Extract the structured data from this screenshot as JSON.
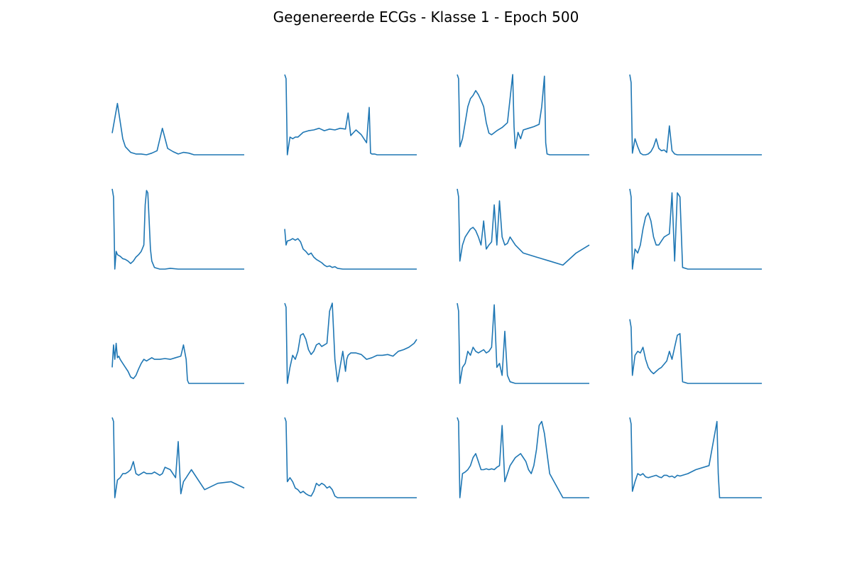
{
  "figure": {
    "title": "Gegenereerde ECGs - Klasse 1 - Epoch 500"
  },
  "line_color": "#1f77b4",
  "chart_data": [
    {
      "type": "line",
      "x": [
        0,
        4,
        8,
        10,
        14,
        18,
        22,
        26,
        30,
        34,
        38,
        42,
        46,
        50,
        54,
        58,
        62,
        66,
        70,
        74,
        78,
        82,
        86,
        90,
        94,
        98,
        100
      ],
      "values": [
        0.27,
        0.64,
        0.2,
        0.1,
        0.03,
        0.01,
        0.01,
        0.0,
        0.02,
        0.05,
        0.33,
        0.08,
        0.04,
        0.01,
        0.03,
        0.02,
        0.0,
        0.0,
        0.0,
        0.0,
        0.0,
        0.0,
        0.0,
        0.0,
        0.0,
        0.0,
        0.0
      ]
    },
    {
      "type": "line",
      "x": [
        0,
        1,
        2,
        4,
        6,
        8,
        10,
        14,
        18,
        22,
        26,
        30,
        34,
        38,
        42,
        46,
        48,
        50,
        54,
        58,
        62,
        64,
        65,
        66,
        68,
        70,
        74,
        78,
        82,
        86,
        90,
        94,
        98,
        100
      ],
      "values": [
        1.0,
        0.95,
        0.0,
        0.22,
        0.2,
        0.22,
        0.22,
        0.28,
        0.3,
        0.31,
        0.33,
        0.3,
        0.32,
        0.31,
        0.33,
        0.32,
        0.52,
        0.24,
        0.31,
        0.25,
        0.15,
        0.59,
        0.02,
        0.01,
        0.01,
        0.0,
        0.0,
        0.0,
        0.0,
        0.0,
        0.0,
        0.0,
        0.0,
        0.0
      ]
    },
    {
      "type": "line",
      "x": [
        0,
        1,
        2,
        4,
        6,
        8,
        10,
        12,
        14,
        16,
        18,
        20,
        22,
        24,
        26,
        30,
        34,
        38,
        40,
        42,
        43,
        44,
        46,
        48,
        50,
        54,
        58,
        62,
        64,
        66,
        67,
        68,
        70,
        74,
        80,
        86,
        92,
        100
      ],
      "values": [
        1.0,
        0.95,
        0.1,
        0.2,
        0.4,
        0.6,
        0.7,
        0.74,
        0.8,
        0.75,
        0.68,
        0.6,
        0.4,
        0.27,
        0.25,
        0.3,
        0.34,
        0.4,
        0.7,
        1.0,
        0.35,
        0.08,
        0.28,
        0.2,
        0.31,
        0.33,
        0.35,
        0.38,
        0.6,
        0.98,
        0.15,
        0.01,
        0.0,
        0.0,
        0.0,
        0.0,
        0.0,
        0.0
      ]
    },
    {
      "type": "line",
      "x": [
        0,
        1,
        2,
        4,
        6,
        8,
        10,
        12,
        14,
        16,
        18,
        20,
        22,
        24,
        26,
        28,
        30,
        32,
        34,
        36,
        38,
        40,
        44,
        50,
        60,
        70,
        80,
        90,
        100
      ],
      "values": [
        1.0,
        0.9,
        0.02,
        0.2,
        0.1,
        0.02,
        0.0,
        0.0,
        0.01,
        0.04,
        0.1,
        0.2,
        0.08,
        0.05,
        0.06,
        0.03,
        0.36,
        0.05,
        0.01,
        0.0,
        0.0,
        0.0,
        0.0,
        0.0,
        0.0,
        0.0,
        0.0,
        0.0,
        0.0
      ]
    },
    {
      "type": "line",
      "x": [
        0,
        1,
        2,
        3,
        4,
        6,
        8,
        10,
        12,
        14,
        16,
        18,
        20,
        22,
        24,
        25,
        26,
        27,
        28,
        29,
        30,
        32,
        34,
        36,
        38,
        40,
        44,
        50,
        60,
        70,
        80,
        90,
        100
      ],
      "values": [
        1.0,
        0.9,
        0.0,
        0.22,
        0.18,
        0.16,
        0.13,
        0.12,
        0.1,
        0.07,
        0.1,
        0.15,
        0.18,
        0.22,
        0.3,
        0.8,
        0.98,
        0.95,
        0.6,
        0.25,
        0.1,
        0.02,
        0.01,
        0.0,
        0.0,
        0.0,
        0.01,
        0.0,
        0.0,
        0.0,
        0.0,
        0.0,
        0.0
      ]
    },
    {
      "type": "line",
      "x": [
        0,
        1,
        2,
        4,
        6,
        8,
        10,
        12,
        14,
        16,
        18,
        20,
        22,
        24,
        26,
        28,
        30,
        32,
        34,
        36,
        38,
        40,
        44,
        50,
        60,
        70,
        80,
        90,
        100
      ],
      "values": [
        0.5,
        0.3,
        0.35,
        0.36,
        0.38,
        0.36,
        0.38,
        0.34,
        0.25,
        0.22,
        0.18,
        0.2,
        0.15,
        0.12,
        0.1,
        0.08,
        0.05,
        0.03,
        0.04,
        0.02,
        0.03,
        0.01,
        0.0,
        0.0,
        0.0,
        0.0,
        0.0,
        0.0,
        0.0
      ]
    },
    {
      "type": "line",
      "x": [
        0,
        1,
        2,
        4,
        6,
        8,
        10,
        12,
        14,
        16,
        18,
        20,
        22,
        24,
        26,
        28,
        30,
        32,
        34,
        36,
        38,
        40,
        44,
        50,
        60,
        70,
        80,
        90,
        100
      ],
      "values": [
        1.0,
        0.9,
        0.1,
        0.3,
        0.4,
        0.45,
        0.5,
        0.52,
        0.48,
        0.4,
        0.3,
        0.6,
        0.25,
        0.3,
        0.34,
        0.8,
        0.3,
        0.85,
        0.4,
        0.3,
        0.32,
        0.4,
        0.3,
        0.2,
        0.15,
        0.1,
        0.05,
        0.2,
        0.3
      ]
    },
    {
      "type": "line",
      "x": [
        0,
        1,
        2,
        4,
        6,
        8,
        10,
        12,
        14,
        16,
        18,
        20,
        22,
        24,
        26,
        28,
        30,
        32,
        34,
        36,
        38,
        40,
        44,
        50,
        60,
        70,
        80,
        90,
        100
      ],
      "values": [
        1.0,
        0.9,
        0.0,
        0.25,
        0.2,
        0.3,
        0.5,
        0.65,
        0.7,
        0.6,
        0.4,
        0.3,
        0.3,
        0.35,
        0.4,
        0.42,
        0.44,
        0.95,
        0.1,
        0.95,
        0.9,
        0.02,
        0.0,
        0.0,
        0.0,
        0.0,
        0.0,
        0.0,
        0.0
      ]
    },
    {
      "type": "line",
      "x": [
        0,
        1,
        2,
        3,
        4,
        5,
        6,
        8,
        10,
        12,
        14,
        16,
        18,
        20,
        22,
        24,
        26,
        28,
        30,
        32,
        36,
        40,
        44,
        48,
        52,
        54,
        56,
        57,
        58,
        60,
        64,
        70,
        80,
        90,
        100
      ],
      "values": [
        0.2,
        0.48,
        0.3,
        0.5,
        0.32,
        0.34,
        0.3,
        0.25,
        0.2,
        0.15,
        0.08,
        0.06,
        0.1,
        0.18,
        0.25,
        0.3,
        0.28,
        0.3,
        0.32,
        0.3,
        0.3,
        0.31,
        0.3,
        0.32,
        0.34,
        0.48,
        0.3,
        0.04,
        0.0,
        0.0,
        0.0,
        0.0,
        0.0,
        0.0,
        0.0
      ]
    },
    {
      "type": "line",
      "x": [
        0,
        1,
        2,
        4,
        6,
        8,
        10,
        12,
        14,
        16,
        18,
        20,
        22,
        24,
        26,
        28,
        30,
        32,
        34,
        36,
        38,
        40,
        44,
        46,
        47,
        48,
        50,
        54,
        58,
        62,
        66,
        70,
        74,
        78,
        82,
        86,
        90,
        94,
        98,
        100
      ],
      "values": [
        1.0,
        0.95,
        0.0,
        0.2,
        0.35,
        0.3,
        0.4,
        0.6,
        0.62,
        0.55,
        0.42,
        0.36,
        0.4,
        0.48,
        0.5,
        0.46,
        0.48,
        0.5,
        0.9,
        1.0,
        0.3,
        0.02,
        0.4,
        0.15,
        0.3,
        0.35,
        0.38,
        0.38,
        0.36,
        0.3,
        0.32,
        0.35,
        0.35,
        0.36,
        0.34,
        0.4,
        0.42,
        0.45,
        0.5,
        0.55
      ]
    },
    {
      "type": "line",
      "x": [
        0,
        1,
        2,
        4,
        6,
        8,
        10,
        12,
        14,
        16,
        18,
        20,
        22,
        24,
        26,
        28,
        30,
        32,
        34,
        36,
        38,
        40,
        44,
        50,
        60,
        70,
        80,
        90,
        100
      ],
      "values": [
        1.0,
        0.9,
        0.0,
        0.2,
        0.25,
        0.4,
        0.35,
        0.45,
        0.4,
        0.38,
        0.4,
        0.42,
        0.38,
        0.4,
        0.45,
        0.98,
        0.2,
        0.25,
        0.1,
        0.65,
        0.1,
        0.02,
        0.0,
        0.0,
        0.0,
        0.0,
        0.0,
        0.0,
        0.0
      ]
    },
    {
      "type": "line",
      "x": [
        0,
        1,
        2,
        4,
        6,
        8,
        10,
        12,
        14,
        16,
        18,
        20,
        22,
        24,
        26,
        28,
        30,
        32,
        34,
        36,
        38,
        40,
        44,
        50,
        60,
        70,
        80,
        90,
        100
      ],
      "values": [
        0.8,
        0.7,
        0.1,
        0.35,
        0.4,
        0.38,
        0.45,
        0.3,
        0.2,
        0.15,
        0.12,
        0.15,
        0.18,
        0.2,
        0.24,
        0.28,
        0.4,
        0.3,
        0.45,
        0.6,
        0.62,
        0.02,
        0.0,
        0.0,
        0.0,
        0.0,
        0.0,
        0.0,
        0.0
      ]
    },
    {
      "type": "line",
      "x": [
        0,
        1,
        2,
        4,
        6,
        8,
        10,
        12,
        14,
        16,
        18,
        20,
        22,
        24,
        26,
        28,
        30,
        32,
        34,
        36,
        38,
        40,
        44,
        48,
        50,
        52,
        54,
        56,
        58,
        60,
        70,
        80,
        90,
        100
      ],
      "values": [
        1.0,
        0.95,
        0.0,
        0.22,
        0.25,
        0.3,
        0.3,
        0.32,
        0.35,
        0.45,
        0.3,
        0.28,
        0.3,
        0.32,
        0.3,
        0.3,
        0.3,
        0.32,
        0.3,
        0.28,
        0.3,
        0.38,
        0.35,
        0.25,
        0.7,
        0.05,
        0.2,
        0.25,
        0.3,
        0.35,
        0.1,
        0.18,
        0.2,
        0.12
      ]
    },
    {
      "type": "line",
      "x": [
        0,
        1,
        2,
        4,
        6,
        8,
        10,
        12,
        14,
        16,
        18,
        20,
        22,
        24,
        26,
        28,
        30,
        32,
        34,
        36,
        38,
        40,
        44,
        50,
        60,
        70,
        80,
        90,
        100
      ],
      "values": [
        1.0,
        0.95,
        0.2,
        0.25,
        0.2,
        0.12,
        0.1,
        0.06,
        0.08,
        0.05,
        0.03,
        0.02,
        0.08,
        0.18,
        0.15,
        0.18,
        0.16,
        0.12,
        0.14,
        0.1,
        0.02,
        0.0,
        0.0,
        0.0,
        0.0,
        0.0,
        0.0,
        0.0,
        0.0
      ]
    },
    {
      "type": "line",
      "x": [
        0,
        1,
        2,
        4,
        6,
        8,
        10,
        12,
        14,
        16,
        18,
        20,
        22,
        24,
        26,
        28,
        30,
        32,
        34,
        36,
        38,
        40,
        44,
        48,
        50,
        52,
        54,
        56,
        58,
        60,
        62,
        64,
        66,
        70,
        80,
        90,
        100
      ],
      "values": [
        1.0,
        0.95,
        0.0,
        0.3,
        0.32,
        0.35,
        0.4,
        0.5,
        0.55,
        0.45,
        0.35,
        0.35,
        0.36,
        0.35,
        0.36,
        0.35,
        0.38,
        0.4,
        0.9,
        0.2,
        0.3,
        0.4,
        0.5,
        0.55,
        0.5,
        0.45,
        0.35,
        0.3,
        0.4,
        0.6,
        0.9,
        0.95,
        0.8,
        0.3,
        0.0,
        0.0,
        0.0
      ]
    },
    {
      "type": "line",
      "x": [
        0,
        1,
        2,
        4,
        6,
        8,
        10,
        12,
        14,
        16,
        18,
        20,
        22,
        24,
        26,
        28,
        30,
        32,
        34,
        36,
        38,
        40,
        44,
        50,
        60,
        66,
        67,
        68,
        70,
        80,
        90,
        100
      ],
      "values": [
        1.0,
        0.92,
        0.08,
        0.2,
        0.3,
        0.28,
        0.3,
        0.26,
        0.25,
        0.26,
        0.27,
        0.28,
        0.26,
        0.25,
        0.28,
        0.28,
        0.26,
        0.27,
        0.25,
        0.28,
        0.27,
        0.28,
        0.3,
        0.35,
        0.4,
        0.95,
        0.3,
        0.0,
        0.0,
        0.0,
        0.0,
        0.0
      ]
    }
  ]
}
